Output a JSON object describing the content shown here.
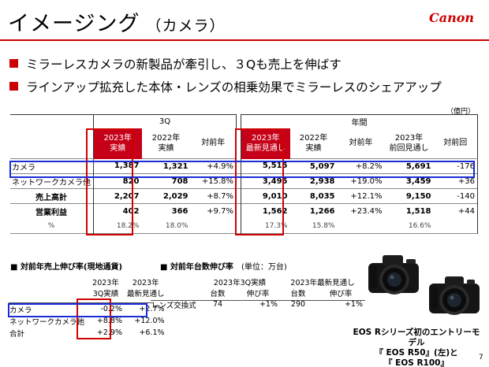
{
  "header": {
    "title": "イメージング",
    "subtitle": "（カメラ）",
    "logo": "Canon"
  },
  "bullets": [
    "ミラーレスカメラの新製品が牽引し、３Qも売上を伸ばす",
    "ラインアップ拡充した本体・レンズの相乗効果でミラーレスのシェアアップ"
  ],
  "unit_note": "（億円）",
  "main_table": {
    "group_3q": "3Q",
    "group_year": "年間",
    "headers": {
      "q_2023": [
        "2023年",
        "実績"
      ],
      "q_2022": [
        "2022年",
        "実績"
      ],
      "q_yoy": "対前年",
      "y_2023": [
        "2023年",
        "最新見通し"
      ],
      "y_2022": [
        "2022年",
        "実績"
      ],
      "y_yoy": "対前年",
      "y_prev": [
        "2023年",
        "前回見通し"
      ],
      "y_vsprev": "対前回"
    },
    "rows": [
      {
        "label": "カメラ",
        "cells": [
          "1,387",
          "1,321",
          "+4.9%",
          "5,515",
          "5,097",
          "+8.2%",
          "5,691",
          "-176"
        ]
      },
      {
        "label": "ネットワークカメラ他",
        "cells": [
          "820",
          "708",
          "+15.8%",
          "3,495",
          "2,938",
          "+19.0%",
          "3,459",
          "+36"
        ]
      },
      {
        "label": "売上高計",
        "cells": [
          "2,207",
          "2,029",
          "+8.7%",
          "9,010",
          "8,035",
          "+12.1%",
          "9,150",
          "-140"
        ]
      },
      {
        "label": "営業利益",
        "cells": [
          "402",
          "366",
          "+9.7%",
          "1,562",
          "1,266",
          "+23.4%",
          "1,518",
          "+44"
        ]
      },
      {
        "label": "%",
        "cells": [
          "18.2%",
          "18.0%",
          "",
          "17.3%",
          "15.8%",
          "",
          "16.6%",
          ""
        ]
      }
    ]
  },
  "local_growth": {
    "title": "■ 対前年売上伸び率(現地通貨)",
    "headers": [
      [
        "2023年",
        "3Q実績"
      ],
      [
        "2023年",
        "最新見通し"
      ]
    ],
    "rows": [
      {
        "label": "カメラ",
        "cells": [
          "-0.2%",
          "+2.7%"
        ]
      },
      {
        "label": "ネットワークカメラ他",
        "cells": [
          "+8.8%",
          "+12.0%"
        ]
      },
      {
        "label": "合計",
        "cells": [
          "+2.9%",
          "+6.1%"
        ]
      }
    ]
  },
  "unit_growth": {
    "title": "■ 対前年台数伸び率",
    "unit": "(単位：万台)",
    "group1": "2023年3Q実績",
    "group2": "2023年最新見通し",
    "subheaders": [
      "台数",
      "伸び率",
      "台数",
      "伸び率"
    ],
    "rows": [
      {
        "label": "レンズ交換式",
        "cells": [
          "74",
          "+1%",
          "290",
          "+1%"
        ]
      }
    ]
  },
  "caption": {
    "line1": "EOS Rシリーズ初のエントリーモデル",
    "line2": "『 EOS R50』(左)と",
    "line3": "『 EOS R100』"
  },
  "page_number": "7",
  "colors": {
    "accent_red": "#cc0000",
    "header_red": "#c50018",
    "highlight_blue": "#1a2bd8"
  }
}
